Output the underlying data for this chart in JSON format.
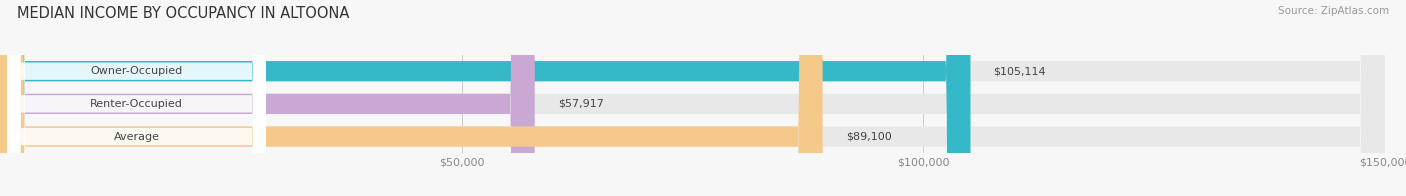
{
  "title": "MEDIAN INCOME BY OCCUPANCY IN ALTOONA",
  "source": "Source: ZipAtlas.com",
  "categories": [
    "Owner-Occupied",
    "Renter-Occupied",
    "Average"
  ],
  "values": [
    105114,
    57917,
    89100
  ],
  "labels": [
    "$105,114",
    "$57,917",
    "$89,100"
  ],
  "bar_colors": [
    "#35b8c8",
    "#c9a8d4",
    "#f5c98a"
  ],
  "bar_bg_color": "#e8e8e8",
  "xlim": [
    0,
    150000
  ],
  "xticks": [
    50000,
    100000,
    150000
  ],
  "xticklabels": [
    "$50,000",
    "$100,000",
    "$150,000"
  ],
  "title_fontsize": 10.5,
  "source_fontsize": 7.5,
  "value_label_fontsize": 8,
  "category_fontsize": 8,
  "background_color": "#f7f7f7",
  "bar_height": 0.62
}
